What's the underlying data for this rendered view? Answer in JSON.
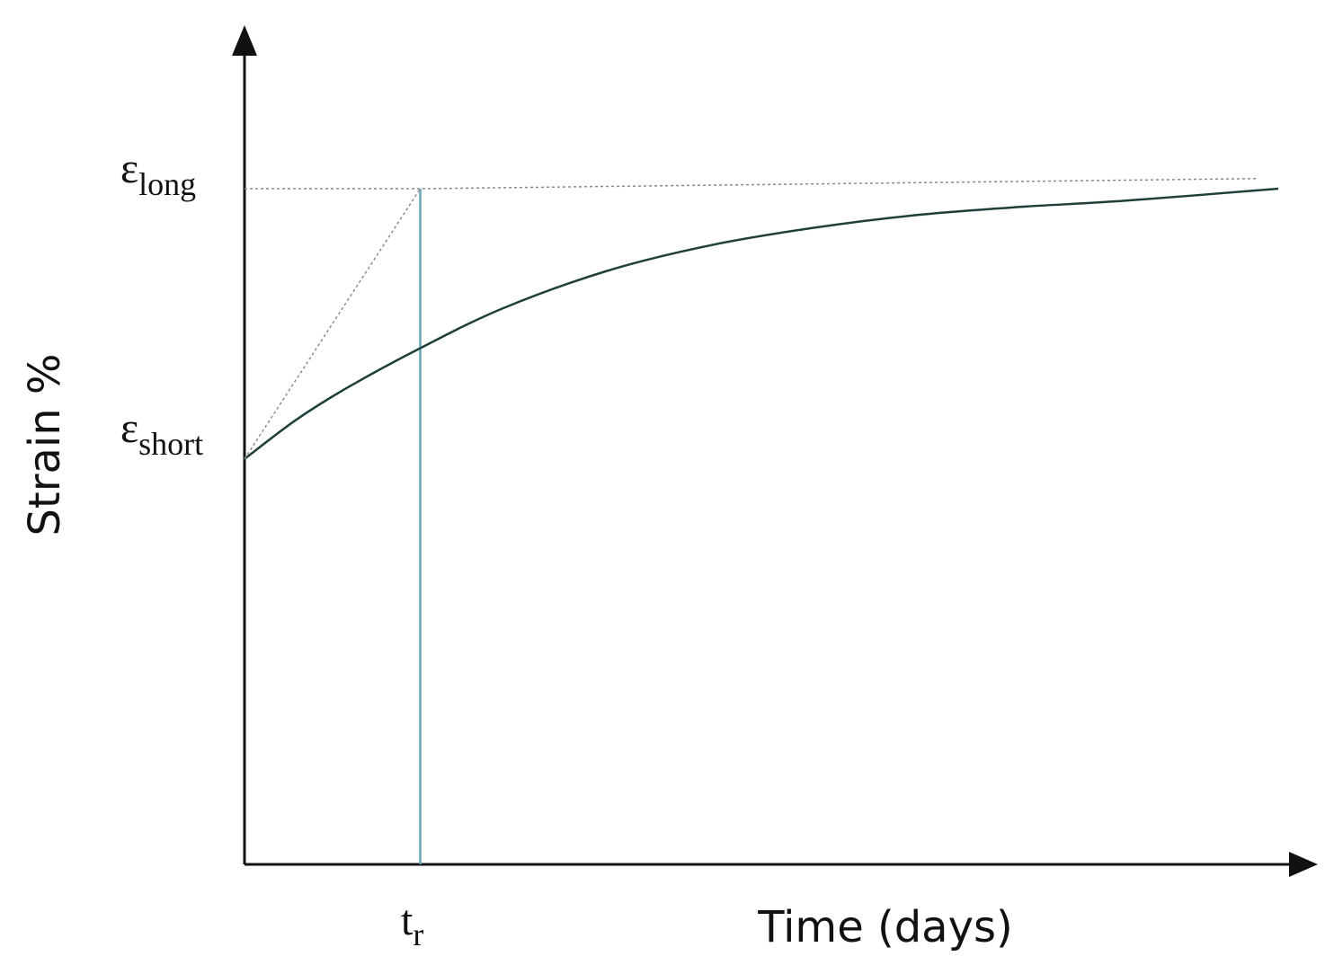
{
  "chart_data": {
    "type": "line",
    "title": "",
    "xlabel": "Time (days)",
    "ylabel": "Strain %",
    "xlim": [
      0,
      1
    ],
    "ylim": [
      0,
      1
    ],
    "grid": false,
    "y_tick_labels": [
      {
        "symbol": "ε",
        "subscript": "short",
        "value": 0.6
      },
      {
        "symbol": "ε",
        "subscript": "long",
        "value": 1.0
      }
    ],
    "x_tick_labels": [
      {
        "symbol": "t",
        "subscript": "r",
        "value": 0.17
      }
    ],
    "series": [
      {
        "style": "solid",
        "color": "#1f3f3c",
        "x": [
          0,
          0.05,
          0.1,
          0.17,
          0.25,
          0.35,
          0.45,
          0.55,
          0.65,
          0.75,
          0.85,
          1.0
        ],
        "y": [
          0.6,
          0.658,
          0.706,
          0.764,
          0.823,
          0.878,
          0.916,
          0.942,
          0.961,
          0.973,
          0.982,
          1.0
        ]
      },
      {
        "style": "dotted",
        "color": "#8a8a8a",
        "x": [
          0,
          0.17
        ],
        "y": [
          0.6,
          1.0
        ]
      },
      {
        "style": "dotted",
        "color": "#8a8a8a",
        "x": [
          0,
          0.17,
          0.98
        ],
        "y": [
          1.0,
          1.0,
          1.015
        ]
      }
    ],
    "vertical_line": {
      "x": 0.17,
      "color": "#6aa6ba"
    },
    "colors": {
      "axis": "#111111",
      "curve": "#1f3f3c",
      "dotted": "#8a8a8a",
      "marker_line": "#6aa6ba"
    }
  }
}
